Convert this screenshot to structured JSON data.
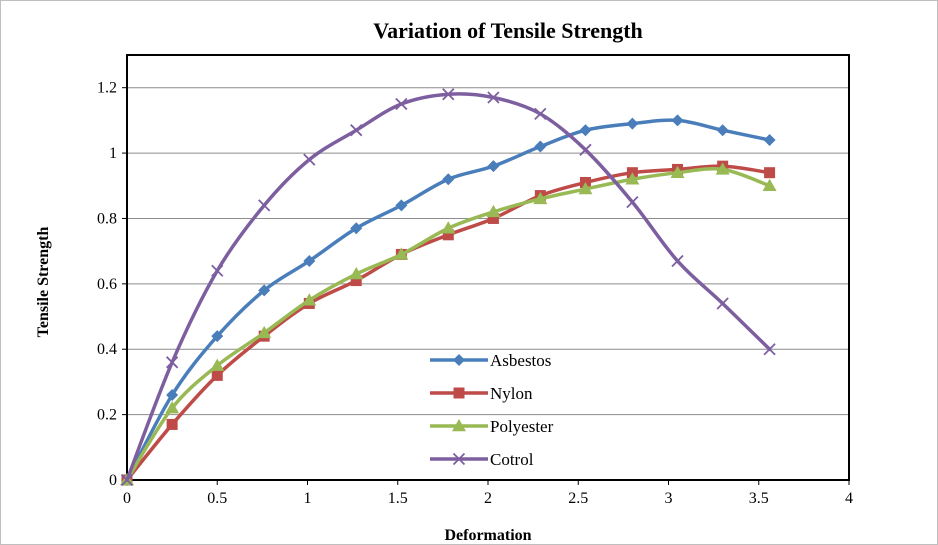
{
  "chart_data": {
    "type": "line",
    "title": "Variation of  Tensile Strength",
    "xlabel": "Deformation",
    "ylabel": "Tensile Strength",
    "xlim": [
      0,
      4
    ],
    "ylim": [
      0,
      1.3
    ],
    "x_ticks": [
      "0",
      "0.5",
      "1",
      "1.5",
      "2",
      "2.5",
      "3",
      "3.5",
      "4"
    ],
    "y_ticks": [
      "0",
      "0.2",
      "0.4",
      "0.6",
      "0.8",
      "1",
      "1.2"
    ],
    "grid": "horizontal",
    "legend_position": "center-bottom",
    "series": [
      {
        "name": "Asbestos",
        "color": "#4a7ebb",
        "marker": "diamond",
        "x": [
          0,
          0.25,
          0.5,
          0.76,
          1.01,
          1.27,
          1.52,
          1.78,
          2.03,
          2.29,
          2.54,
          2.8,
          3.05,
          3.3,
          3.56
        ],
        "y": [
          0,
          0.26,
          0.44,
          0.58,
          0.67,
          0.77,
          0.84,
          0.92,
          0.96,
          1.02,
          1.07,
          1.09,
          1.1,
          1.07,
          1.04
        ]
      },
      {
        "name": "Nylon",
        "color": "#be4b48",
        "marker": "square",
        "x": [
          0,
          0.25,
          0.5,
          0.76,
          1.01,
          1.27,
          1.52,
          1.78,
          2.03,
          2.29,
          2.54,
          2.8,
          3.05,
          3.3,
          3.56
        ],
        "y": [
          0,
          0.17,
          0.32,
          0.44,
          0.54,
          0.61,
          0.69,
          0.75,
          0.8,
          0.87,
          0.91,
          0.94,
          0.95,
          0.96,
          0.94
        ]
      },
      {
        "name": "Polyester",
        "color": "#98b954",
        "marker": "triangle",
        "x": [
          0,
          0.25,
          0.5,
          0.76,
          1.01,
          1.27,
          1.52,
          1.78,
          2.03,
          2.29,
          2.54,
          2.8,
          3.05,
          3.3,
          3.56
        ],
        "y": [
          0,
          0.22,
          0.35,
          0.45,
          0.55,
          0.63,
          0.69,
          0.77,
          0.82,
          0.86,
          0.89,
          0.92,
          0.94,
          0.95,
          0.9
        ]
      },
      {
        "name": "Cotrol",
        "color": "#7d5fa0",
        "marker": "x",
        "x": [
          0,
          0.25,
          0.5,
          0.76,
          1.01,
          1.27,
          1.52,
          1.78,
          2.03,
          2.29,
          2.54,
          2.8,
          3.05,
          3.3,
          3.56
        ],
        "y": [
          0,
          0.36,
          0.64,
          0.84,
          0.98,
          1.07,
          1.15,
          1.18,
          1.17,
          1.12,
          1.01,
          0.85,
          0.67,
          0.54,
          0.4
        ]
      }
    ]
  }
}
